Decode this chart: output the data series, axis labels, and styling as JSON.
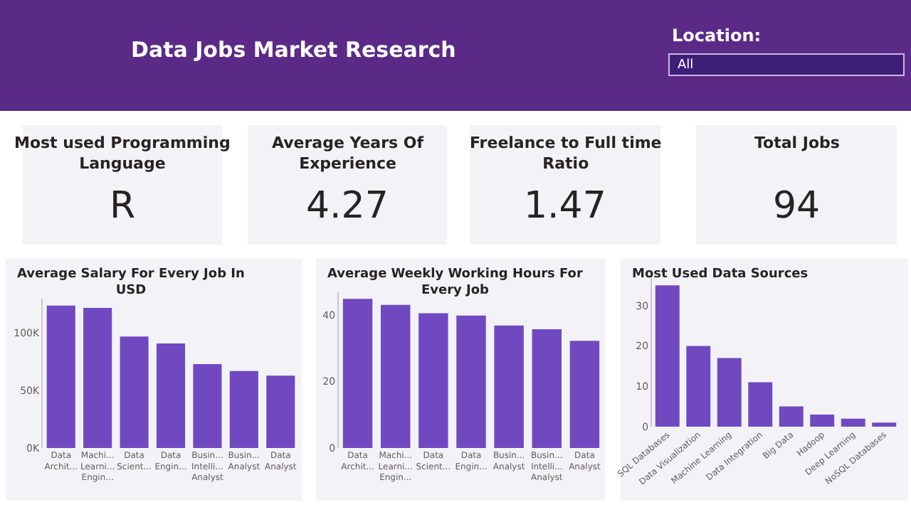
{
  "chart_data": [
    {
      "type": "other",
      "title": "Data Jobs Market Research",
      "annotations": [
        "Location:",
        "All"
      ]
    },
    {
      "type": "other",
      "title": "Most used Programming Language",
      "annotations": [
        "R"
      ]
    },
    {
      "type": "other",
      "title": "Average Years Of Experience",
      "annotations": [
        "4.27"
      ]
    },
    {
      "type": "other",
      "title": "Freelance to Full time Ratio",
      "annotations": [
        "1.47"
      ]
    },
    {
      "type": "other",
      "title": "Total Jobs",
      "annotations": [
        "94"
      ]
    },
    {
      "type": "bar",
      "title": "Average Salary For Every Job In USD",
      "categories": [
        "Data Archit...",
        "Machi... Learni... Engin...",
        "Data Scient...",
        "Data Engin...",
        "Busin... Intelli... Analyst",
        "Busin... Analyst",
        "Data Analyst"
      ],
      "values": [
        124000,
        122000,
        97000,
        91000,
        73000,
        67000,
        63000
      ],
      "color": "#7049c0",
      "ylim": [
        0,
        130000
      ],
      "yticks": [
        {
          "value": 0,
          "label": "0K"
        },
        {
          "value": 50000,
          "label": "50K"
        },
        {
          "value": 100000,
          "label": "100K"
        }
      ]
    },
    {
      "type": "bar",
      "title": "Average Weekly Working Hours For Every Job",
      "categories": [
        "Data Archit...",
        "Machi... Learni... Engin...",
        "Data Scient...",
        "Data Engin...",
        "Busin... Analyst",
        "Busin... Intelli... Analyst",
        "Data Analyst"
      ],
      "values": [
        44.8,
        43,
        40.5,
        39.8,
        36.8,
        35.7,
        32.2
      ],
      "color": "#7049c0",
      "ylim": [
        0,
        47
      ],
      "yticks": [
        0,
        20,
        40
      ]
    },
    {
      "type": "bar",
      "title": "Most Used Data Sources",
      "categories": [
        "SQL Databases",
        "Data Visualization",
        "Machine Learning",
        "Data Integration",
        "Big Data",
        "Hadoop",
        "Deep Learning",
        "NoSQL Databases"
      ],
      "values": [
        35,
        20,
        17,
        11,
        5,
        3,
        2,
        1
      ],
      "color": "#7049c0",
      "ylim": [
        0,
        37
      ],
      "yticks": [
        0,
        10,
        20,
        30
      ]
    }
  ]
}
